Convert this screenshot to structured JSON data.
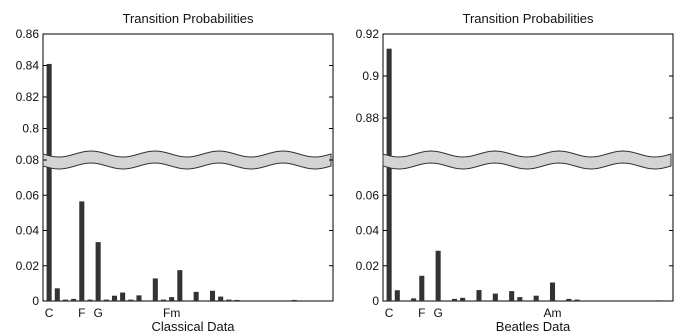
{
  "chart_data": [
    {
      "type": "bar",
      "title": "Transition Probabilities",
      "xlabel": "Classical Data",
      "ylabel": "",
      "axis_break": true,
      "upper_ylim": [
        0.78,
        0.86
      ],
      "upper_yticks": [
        0.8,
        0.82,
        0.84,
        0.86
      ],
      "upper_yticklabels": [
        "0.8",
        "0.82",
        "0.84",
        "0.86"
      ],
      "lower_ylim": [
        0,
        0.08
      ],
      "lower_yticks": [
        0,
        0.02,
        0.04,
        0.06,
        0.08
      ],
      "lower_yticklabels": [
        "0",
        "0.02",
        "0.04",
        "0.06",
        "0.08"
      ],
      "category_labels": [
        {
          "index": 0,
          "text": "C"
        },
        {
          "index": 3,
          "text": "F"
        },
        {
          "index": 4,
          "text": "G"
        },
        {
          "index": 12,
          "text": "Fm"
        }
      ],
      "values": [
        0.841,
        0.0072,
        0.0008,
        0.0012,
        0.0565,
        0.0008,
        0.0334,
        0.0008,
        0.003,
        0.0048,
        0.0008,
        0.0032,
        0.0,
        0.0128,
        0.0008,
        0.0022,
        0.0175,
        0.0,
        0.0052,
        0.0002,
        0.0058,
        0.0025,
        0.0008,
        0.0006,
        0.0002,
        0.0002,
        0.0,
        0.0002,
        0.0002,
        0.0003,
        0.0006,
        0.0,
        0.0002,
        0.0002,
        0.0003
      ],
      "bar_color": "#333333"
    },
    {
      "type": "bar",
      "title": "Transition Probabilities",
      "xlabel": "Beatles Data",
      "ylabel": "",
      "axis_break": true,
      "upper_ylim": [
        0.86,
        0.92
      ],
      "upper_yticks": [
        0.88,
        0.9,
        0.92
      ],
      "upper_yticklabels": [
        "0.88",
        "0.9",
        "0.92"
      ],
      "lower_ylim": [
        0,
        0.08
      ],
      "lower_yticks": [
        0,
        0.02,
        0.04,
        0.06
      ],
      "lower_yticklabels": [
        "0",
        "0.02",
        "0.04",
        "0.06"
      ],
      "category_labels": [
        {
          "index": 0,
          "text": "C"
        },
        {
          "index": 3,
          "text": "F"
        },
        {
          "index": 4,
          "text": "G"
        },
        {
          "index": 14,
          "text": "Am"
        }
      ],
      "values": [
        0.913,
        0.0061,
        0.0002,
        0.0015,
        0.0143,
        0.0002,
        0.0285,
        0.0,
        0.0012,
        0.0018,
        0.0,
        0.0062,
        0.0,
        0.0042,
        0.0,
        0.0056,
        0.0022,
        0.0,
        0.003,
        0.0002,
        0.0105,
        0.0,
        0.0012,
        0.0008,
        0.0002,
        0.0002,
        0.0002,
        0.0,
        0.0002,
        0.0002,
        0.0001,
        0.0,
        0.0002,
        0.0004,
        0.0001
      ],
      "bar_color": "#333333"
    }
  ]
}
